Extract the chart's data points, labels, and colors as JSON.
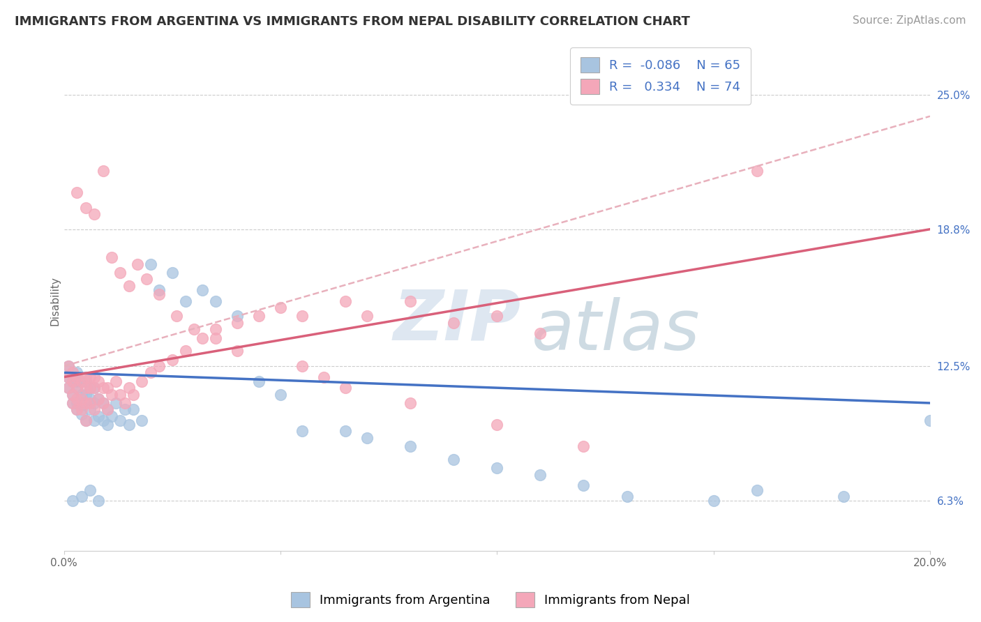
{
  "title": "IMMIGRANTS FROM ARGENTINA VS IMMIGRANTS FROM NEPAL DISABILITY CORRELATION CHART",
  "source": "Source: ZipAtlas.com",
  "ylabel": "Disability",
  "xlim": [
    0.0,
    0.2
  ],
  "ylim": [
    0.04,
    0.27
  ],
  "yticks": [
    0.063,
    0.125,
    0.188,
    0.25
  ],
  "ytick_labels": [
    "6.3%",
    "12.5%",
    "18.8%",
    "25.0%"
  ],
  "xticks": [
    0.0,
    0.05,
    0.1,
    0.15,
    0.2
  ],
  "xtick_labels": [
    "0.0%",
    "",
    "",
    "",
    "20.0%"
  ],
  "argentina_color": "#a8c4e0",
  "nepal_color": "#f4a7b9",
  "argentina_line_color": "#4472c4",
  "nepal_line_color": "#d9607a",
  "dashed_line_color": "#e8b0bc",
  "R_argentina": -0.086,
  "N_argentina": 65,
  "R_nepal": 0.334,
  "N_nepal": 74,
  "argentina_x": [
    0.001,
    0.001,
    0.001,
    0.002,
    0.002,
    0.002,
    0.002,
    0.003,
    0.003,
    0.003,
    0.003,
    0.003,
    0.004,
    0.004,
    0.004,
    0.004,
    0.005,
    0.005,
    0.005,
    0.005,
    0.006,
    0.006,
    0.006,
    0.007,
    0.007,
    0.007,
    0.008,
    0.008,
    0.009,
    0.009,
    0.01,
    0.01,
    0.011,
    0.012,
    0.013,
    0.014,
    0.015,
    0.016,
    0.018,
    0.02,
    0.022,
    0.025,
    0.028,
    0.032,
    0.035,
    0.04,
    0.045,
    0.05,
    0.055,
    0.065,
    0.07,
    0.08,
    0.09,
    0.1,
    0.11,
    0.12,
    0.13,
    0.15,
    0.16,
    0.18,
    0.002,
    0.004,
    0.006,
    0.008,
    0.2
  ],
  "argentina_y": [
    0.115,
    0.12,
    0.125,
    0.108,
    0.112,
    0.118,
    0.122,
    0.105,
    0.108,
    0.115,
    0.118,
    0.122,
    0.103,
    0.107,
    0.112,
    0.118,
    0.1,
    0.108,
    0.112,
    0.118,
    0.105,
    0.11,
    0.115,
    0.1,
    0.108,
    0.115,
    0.102,
    0.11,
    0.1,
    0.108,
    0.098,
    0.105,
    0.102,
    0.108,
    0.1,
    0.105,
    0.098,
    0.105,
    0.1,
    0.172,
    0.16,
    0.168,
    0.155,
    0.16,
    0.155,
    0.148,
    0.118,
    0.112,
    0.095,
    0.095,
    0.092,
    0.088,
    0.082,
    0.078,
    0.075,
    0.07,
    0.065,
    0.063,
    0.068,
    0.065,
    0.063,
    0.065,
    0.068,
    0.063,
    0.1
  ],
  "nepal_x": [
    0.001,
    0.001,
    0.001,
    0.002,
    0.002,
    0.002,
    0.002,
    0.003,
    0.003,
    0.003,
    0.003,
    0.004,
    0.004,
    0.004,
    0.005,
    0.005,
    0.005,
    0.005,
    0.006,
    0.006,
    0.006,
    0.007,
    0.007,
    0.007,
    0.008,
    0.008,
    0.009,
    0.009,
    0.01,
    0.01,
    0.011,
    0.012,
    0.013,
    0.014,
    0.015,
    0.016,
    0.018,
    0.02,
    0.022,
    0.025,
    0.028,
    0.032,
    0.035,
    0.04,
    0.045,
    0.05,
    0.055,
    0.065,
    0.07,
    0.08,
    0.09,
    0.1,
    0.11,
    0.16,
    0.003,
    0.005,
    0.007,
    0.009,
    0.011,
    0.013,
    0.015,
    0.017,
    0.019,
    0.022,
    0.026,
    0.03,
    0.035,
    0.04,
    0.055,
    0.06,
    0.065,
    0.08,
    0.1,
    0.12
  ],
  "nepal_y": [
    0.115,
    0.12,
    0.125,
    0.108,
    0.112,
    0.118,
    0.122,
    0.105,
    0.11,
    0.115,
    0.12,
    0.105,
    0.11,
    0.118,
    0.1,
    0.108,
    0.115,
    0.12,
    0.108,
    0.115,
    0.12,
    0.105,
    0.115,
    0.12,
    0.11,
    0.118,
    0.108,
    0.115,
    0.105,
    0.115,
    0.112,
    0.118,
    0.112,
    0.108,
    0.115,
    0.112,
    0.118,
    0.122,
    0.125,
    0.128,
    0.132,
    0.138,
    0.142,
    0.145,
    0.148,
    0.152,
    0.148,
    0.155,
    0.148,
    0.155,
    0.145,
    0.148,
    0.14,
    0.215,
    0.205,
    0.198,
    0.195,
    0.215,
    0.175,
    0.168,
    0.162,
    0.172,
    0.165,
    0.158,
    0.148,
    0.142,
    0.138,
    0.132,
    0.125,
    0.12,
    0.115,
    0.108,
    0.098,
    0.088
  ],
  "watermark_zip": "ZIP",
  "watermark_atlas": "atlas",
  "title_fontsize": 13,
  "axis_label_fontsize": 11,
  "tick_fontsize": 11,
  "legend_fontsize": 13,
  "source_fontsize": 11,
  "legend_label_argentina": "Immigrants from Argentina",
  "legend_label_nepal": "Immigrants from Nepal"
}
